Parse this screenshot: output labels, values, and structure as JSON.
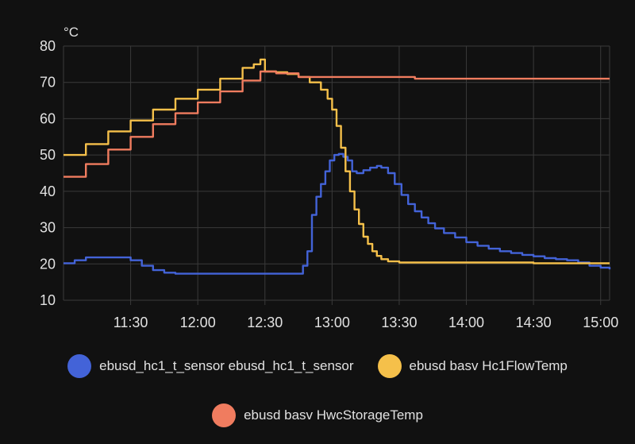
{
  "chart_data": {
    "type": "line",
    "ylabel": "°C",
    "ylim": [
      10,
      80
    ],
    "yticks": [
      "10",
      "20",
      "30",
      "40",
      "50",
      "60",
      "70",
      "80"
    ],
    "xlim": [
      "11:00",
      "15:04"
    ],
    "xticks": [
      {
        "t": "11:30",
        "label": "11:30"
      },
      {
        "t": "12:00",
        "label": "12:00"
      },
      {
        "t": "12:30",
        "label": "12:30"
      },
      {
        "t": "13:00",
        "label": "13:00"
      },
      {
        "t": "13:30",
        "label": "13:30"
      },
      {
        "t": "14:00",
        "label": "14:00"
      },
      {
        "t": "14:30",
        "label": "14:30"
      },
      {
        "t": "15:00",
        "label": "15:00"
      }
    ],
    "grid": true,
    "legend_position": "bottom",
    "series": [
      {
        "name": "ebusd_hc1_t_sensor ebusd_hc1_t_sensor",
        "color": "#4363d8",
        "points": [
          [
            "11:00",
            20.2
          ],
          [
            "11:05",
            21.0
          ],
          [
            "11:10",
            21.8
          ],
          [
            "11:15",
            21.8
          ],
          [
            "11:20",
            21.8
          ],
          [
            "11:25",
            21.8
          ],
          [
            "11:30",
            21.0
          ],
          [
            "11:35",
            19.5
          ],
          [
            "11:40",
            18.3
          ],
          [
            "11:45",
            17.6
          ],
          [
            "11:50",
            17.3
          ],
          [
            "12:00",
            17.3
          ],
          [
            "12:30",
            17.3
          ],
          [
            "12:45",
            17.3
          ],
          [
            "12:47",
            19.5
          ],
          [
            "12:49",
            23.5
          ],
          [
            "12:51",
            33.5
          ],
          [
            "12:53",
            38.5
          ],
          [
            "12:55",
            42.0
          ],
          [
            "12:57",
            45.5
          ],
          [
            "12:59",
            48.5
          ],
          [
            "13:01",
            50.0
          ],
          [
            "13:03",
            50.3
          ],
          [
            "13:05",
            49.5
          ],
          [
            "13:07",
            48.5
          ],
          [
            "13:09",
            45.5
          ],
          [
            "13:11",
            45.0
          ],
          [
            "13:14",
            45.8
          ],
          [
            "13:17",
            46.5
          ],
          [
            "13:20",
            47.0
          ],
          [
            "13:22",
            46.5
          ],
          [
            "13:25",
            45.0
          ],
          [
            "13:28",
            42.0
          ],
          [
            "13:31",
            39.0
          ],
          [
            "13:34",
            36.5
          ],
          [
            "13:37",
            34.5
          ],
          [
            "13:40",
            32.8
          ],
          [
            "13:43",
            31.2
          ],
          [
            "13:46",
            29.8
          ],
          [
            "13:50",
            28.5
          ],
          [
            "13:55",
            27.3
          ],
          [
            "14:00",
            26.0
          ],
          [
            "14:05",
            25.0
          ],
          [
            "14:10",
            24.2
          ],
          [
            "14:15",
            23.5
          ],
          [
            "14:20",
            23.0
          ],
          [
            "14:25",
            22.5
          ],
          [
            "14:30",
            22.1
          ],
          [
            "14:35",
            21.6
          ],
          [
            "14:40",
            21.3
          ],
          [
            "14:45",
            21.0
          ],
          [
            "14:50",
            20.4
          ],
          [
            "14:55",
            19.5
          ],
          [
            "15:00",
            19.0
          ],
          [
            "15:04",
            18.5
          ]
        ]
      },
      {
        "name": "ebusd basv Hc1FlowTemp",
        "color": "#f5c04a",
        "points": [
          [
            "11:00",
            50.0
          ],
          [
            "11:10",
            53.0
          ],
          [
            "11:20",
            56.5
          ],
          [
            "11:30",
            59.5
          ],
          [
            "11:40",
            62.5
          ],
          [
            "11:50",
            65.5
          ],
          [
            "12:00",
            68.0
          ],
          [
            "12:10",
            71.0
          ],
          [
            "12:20",
            74.0
          ],
          [
            "12:25",
            75.0
          ],
          [
            "12:28",
            76.3
          ],
          [
            "12:30",
            73.0
          ],
          [
            "12:35",
            72.8
          ],
          [
            "12:40",
            72.3
          ],
          [
            "12:45",
            71.5
          ],
          [
            "12:50",
            70.0
          ],
          [
            "12:55",
            68.0
          ],
          [
            "12:58",
            65.5
          ],
          [
            "13:00",
            62.5
          ],
          [
            "13:02",
            58.0
          ],
          [
            "13:04",
            52.0
          ],
          [
            "13:06",
            45.5
          ],
          [
            "13:08",
            40.0
          ],
          [
            "13:10",
            35.0
          ],
          [
            "13:12",
            31.0
          ],
          [
            "13:14",
            27.5
          ],
          [
            "13:16",
            25.5
          ],
          [
            "13:18",
            23.5
          ],
          [
            "13:20",
            22.2
          ],
          [
            "13:22",
            21.3
          ],
          [
            "13:25",
            20.7
          ],
          [
            "13:30",
            20.4
          ],
          [
            "14:00",
            20.4
          ],
          [
            "14:30",
            20.2
          ],
          [
            "15:04",
            20.2
          ]
        ]
      },
      {
        "name": "ebusd basv HwcStorageTemp",
        "color": "#f07c5f",
        "points": [
          [
            "11:00",
            44.0
          ],
          [
            "11:10",
            47.5
          ],
          [
            "11:20",
            51.5
          ],
          [
            "11:30",
            55.0
          ],
          [
            "11:40",
            58.5
          ],
          [
            "11:50",
            61.5
          ],
          [
            "12:00",
            64.5
          ],
          [
            "12:10",
            67.5
          ],
          [
            "12:20",
            70.5
          ],
          [
            "12:28",
            73.0
          ],
          [
            "12:35",
            72.5
          ],
          [
            "12:45",
            71.5
          ],
          [
            "13:00",
            71.5
          ],
          [
            "13:30",
            71.5
          ],
          [
            "13:37",
            71.0
          ],
          [
            "14:00",
            71.0
          ],
          [
            "14:30",
            71.0
          ],
          [
            "15:04",
            71.0
          ]
        ]
      }
    ]
  },
  "legend": {
    "items": [
      {
        "label": "ebusd_hc1_t_sensor ebusd_hc1_t_sensor",
        "color": "#4363d8"
      },
      {
        "label": "ebusd basv Hc1FlowTemp",
        "color": "#f5c04a"
      },
      {
        "label": "ebusd basv HwcStorageTemp",
        "color": "#f07c5f"
      }
    ]
  }
}
